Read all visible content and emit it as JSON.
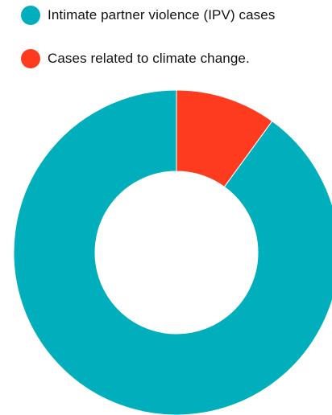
{
  "chart_data": {
    "type": "pie",
    "variant": "donut",
    "title": "",
    "categories": [
      "Intimate partner violence (IPV) cases",
      "Cases related to climate change."
    ],
    "values": [
      90,
      10
    ],
    "colors": [
      "#00AEBC",
      "#FF3B1F"
    ],
    "legend": "top-left",
    "start_angle_deg": 0,
    "direction": "counterclockwise"
  }
}
